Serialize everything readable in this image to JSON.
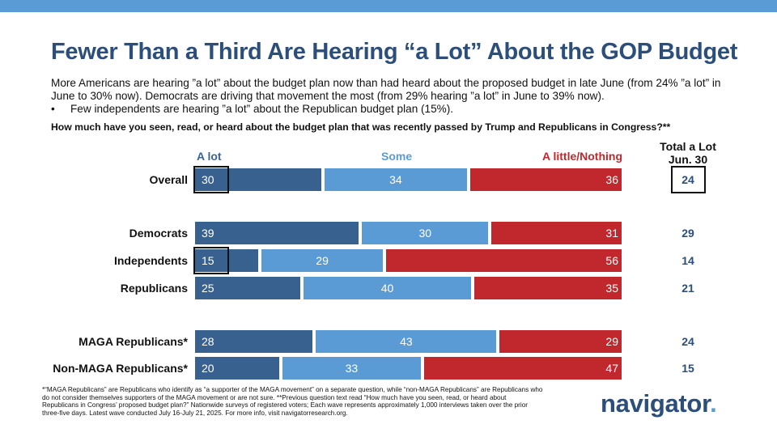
{
  "title": "Fewer Than a Third Are Hearing “a Lot” About the GOP Budget",
  "paragraph": "More Americans are hearing ”a lot” about the budget plan now than had heard about the proposed budget in late June (from 24% ”a lot” in June to 30% now). Democrats are driving that movement the most (from 29% hearing ”a lot” in June to 39% now).",
  "bullet_marker": "•",
  "bullet": "Few independents are hearing ”a lot” about the Republican budget plan (15%).",
  "question": "How much have you seen, read, or heard about the budget plan that was recently passed by Trump and Republicans in Congress?**",
  "legend": {
    "a_lot": "A lot",
    "some": "Some",
    "nothing": "A little/Nothing"
  },
  "total_header": {
    "line1": "Total a Lot",
    "line2": "Jun. 30"
  },
  "colors": {
    "a_lot": "#38618f",
    "some": "#5b9bd5",
    "nothing": "#c0282d",
    "title": "#2b4e7a"
  },
  "chart_data": {
    "type": "bar",
    "orientation": "horizontal",
    "stacked": true,
    "categories": [
      "Overall",
      "Democrats",
      "Independents",
      "Republicans",
      "MAGA Republicans*",
      "Non-MAGA Republicans*"
    ],
    "series": [
      {
        "name": "A lot",
        "values": [
          30,
          39,
          15,
          25,
          28,
          20
        ]
      },
      {
        "name": "Some",
        "values": [
          34,
          30,
          29,
          40,
          43,
          33
        ]
      },
      {
        "name": "A little/Nothing",
        "values": [
          36,
          31,
          56,
          35,
          29,
          47
        ]
      }
    ],
    "total_a_lot_jun30": [
      24,
      29,
      14,
      21,
      24,
      15
    ],
    "highlighted": [
      "Overall",
      "Independents"
    ],
    "xlim": [
      0,
      100
    ]
  },
  "footnote": "*“MAGA Republicans” are Republicans who identify as “a supporter of the MAGA movement” on a separate question, while “non-MAGA Republicans” are Republicans who do not consider themselves supporters of the MAGA movement or are not sure. **Previous question text read “How much have you seen, read, or heard about Republicans in Congress’ proposed budget plan?” Nationwide surveys of registered voters; Each wave represents approximately 1,000 interviews taken over the prior three-five days. Latest wave conducted July 16-July 21, 2025. For more info, visit navigatorresearch.org.",
  "logo": {
    "text": "navigator",
    "dot": "."
  }
}
